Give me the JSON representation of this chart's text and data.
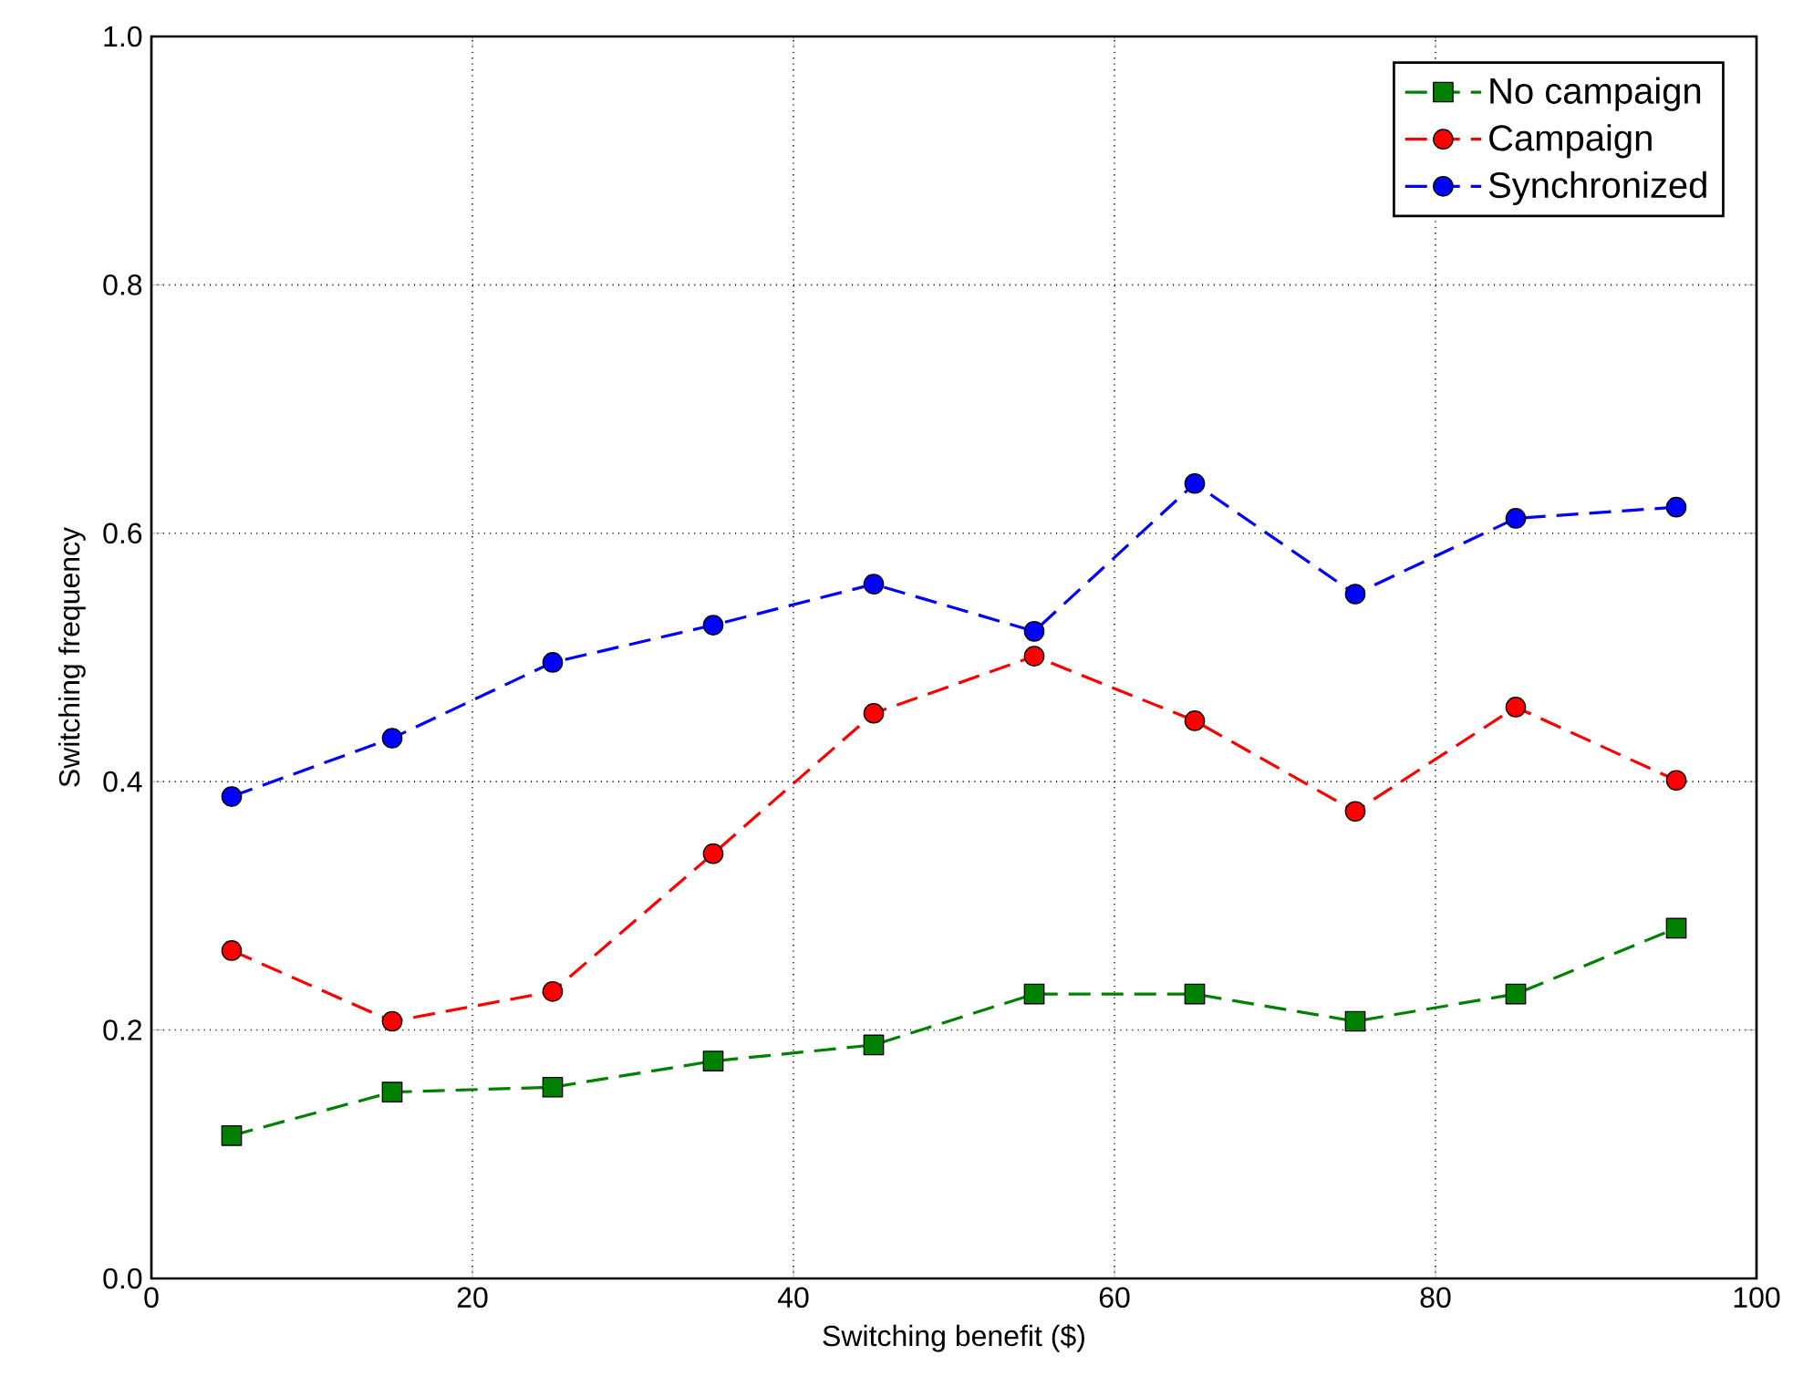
{
  "chart_data": {
    "type": "line",
    "xlabel": "Switching benefit ($)",
    "ylabel": "Switching frequency",
    "x": [
      5,
      15,
      25,
      35,
      45,
      55,
      65,
      75,
      85,
      95
    ],
    "series": [
      {
        "name": "No campaign",
        "color": "#008000",
        "marker": "square",
        "values": [
          0.115,
          0.15,
          0.154,
          0.175,
          0.188,
          0.229,
          0.229,
          0.207,
          0.229,
          0.282
        ]
      },
      {
        "name": "Campaign",
        "color": "#ff0000",
        "marker": "circle",
        "values": [
          0.264,
          0.207,
          0.231,
          0.342,
          0.455,
          0.501,
          0.449,
          0.376,
          0.46,
          0.401
        ]
      },
      {
        "name": "Synchronized",
        "color": "#0000ff",
        "marker": "circle",
        "values": [
          0.388,
          0.435,
          0.496,
          0.526,
          0.559,
          0.521,
          0.64,
          0.551,
          0.612,
          0.621
        ]
      }
    ],
    "xlim": [
      0,
      100
    ],
    "xticks": [
      0,
      20,
      40,
      60,
      80,
      100
    ],
    "ylim": [
      0.0,
      1.0
    ],
    "yticks": [
      {
        "value": 0.0,
        "label": "0.0"
      },
      {
        "value": 0.2,
        "label": "0.2"
      },
      {
        "value": 0.4,
        "label": "0.4"
      },
      {
        "value": 0.6,
        "label": "0.6"
      },
      {
        "value": 0.8,
        "label": "0.8"
      },
      {
        "value": 1.0,
        "label": "1.0"
      }
    ],
    "grid": true,
    "legend": "top right",
    "line_style": "dashed"
  }
}
